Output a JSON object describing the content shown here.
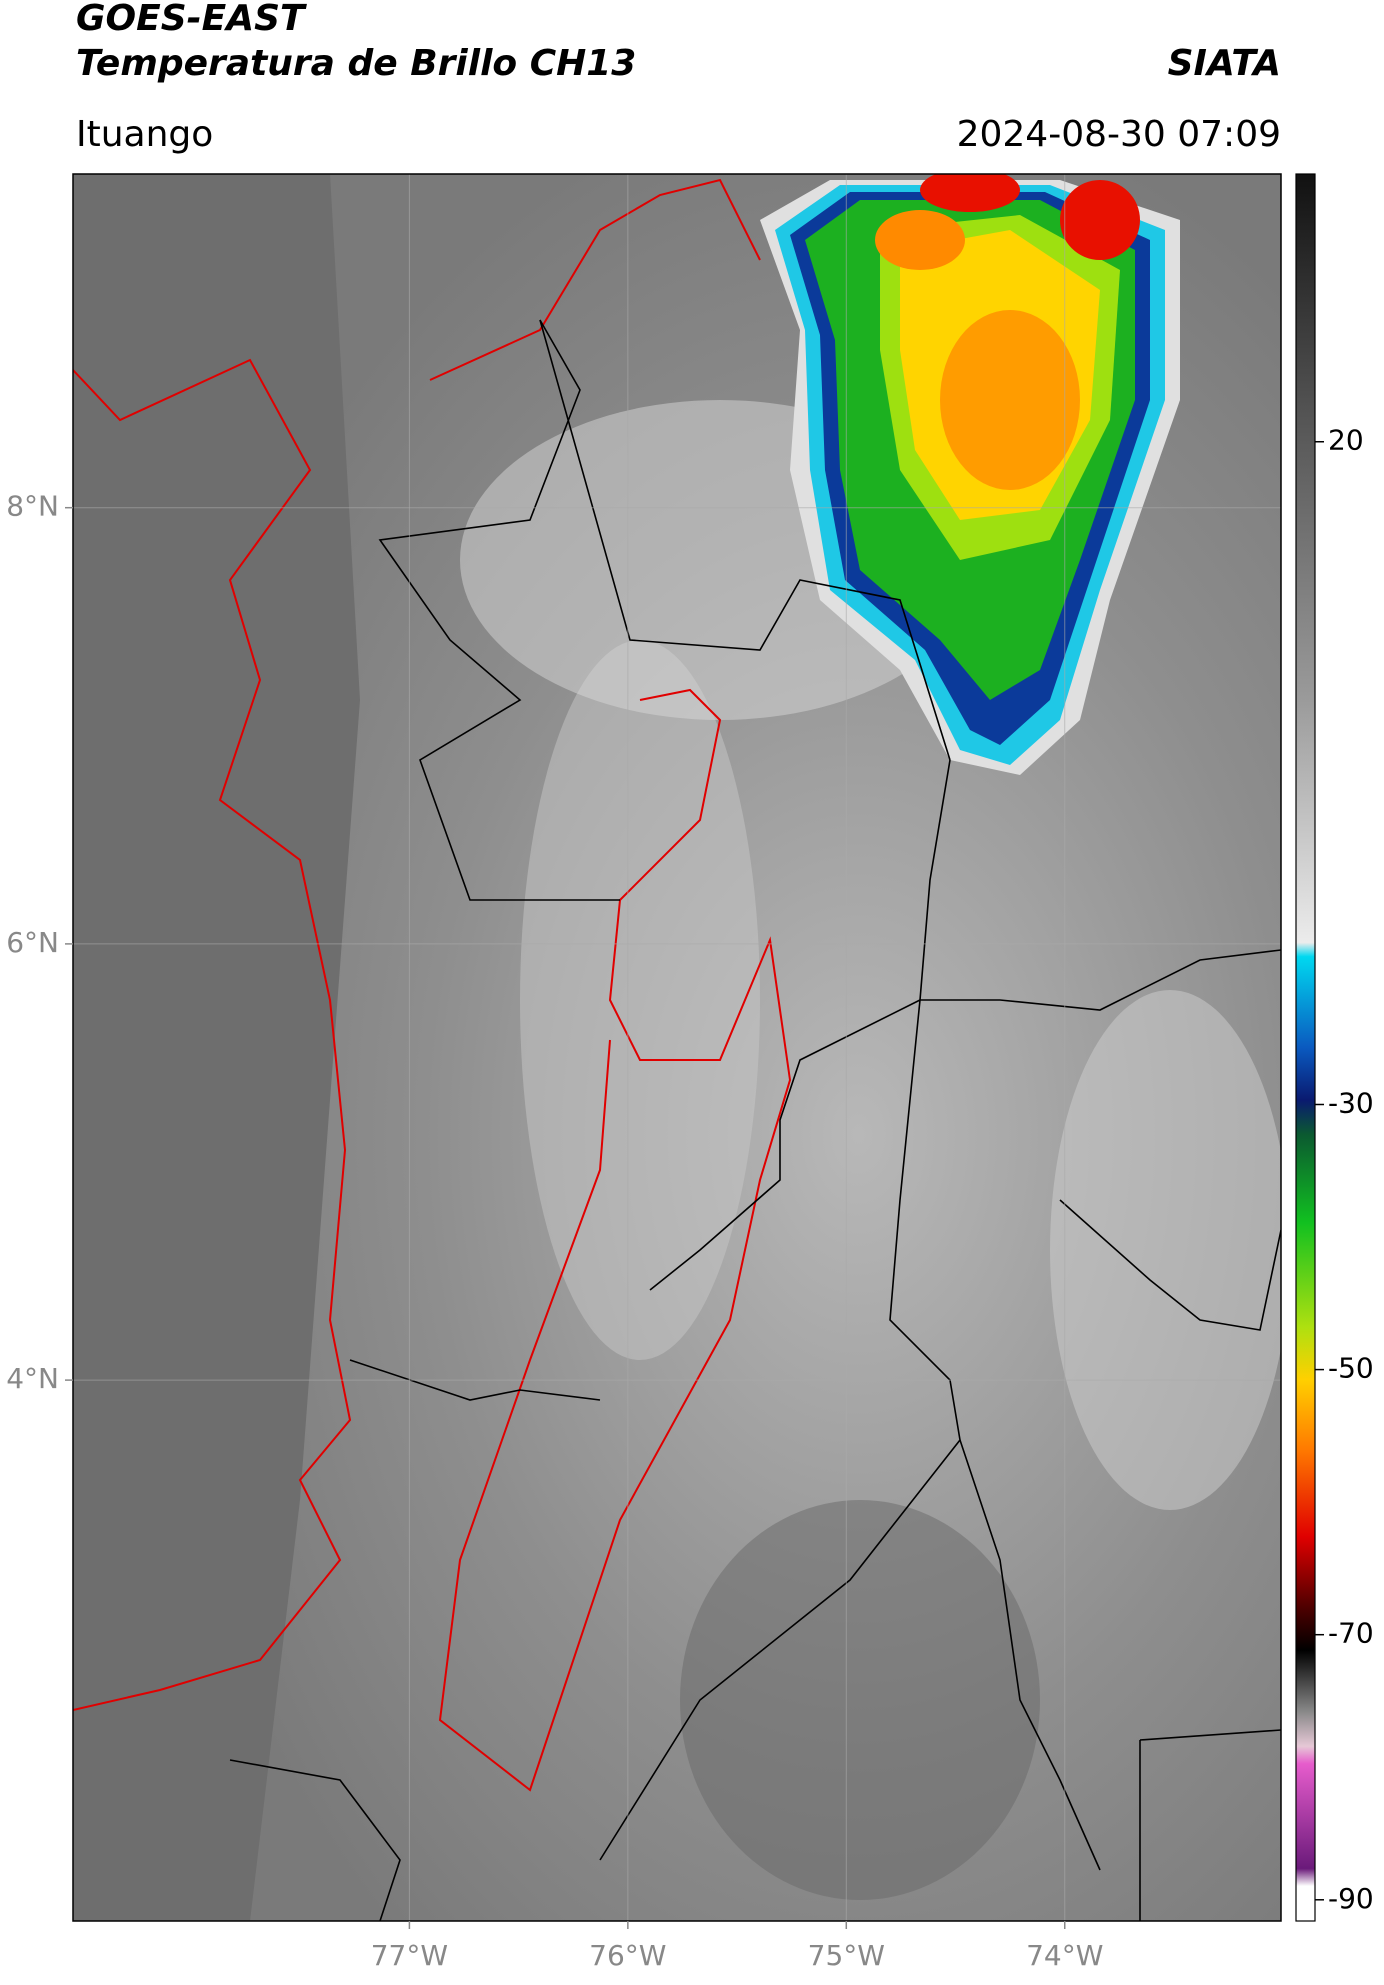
{
  "header": {
    "title": "GOES-EAST",
    "subtitle": "Temperatura de Brillo CH13",
    "source": "SIATA",
    "location": "Ituango",
    "datetime": "2024-08-30 07:09"
  },
  "map": {
    "xlim": [
      -78.54,
      -73.01
    ],
    "ylim": [
      1.52,
      9.53
    ],
    "xticks": [
      {
        "value": -77,
        "label": "77°W"
      },
      {
        "value": -76,
        "label": "76°W"
      },
      {
        "value": -75,
        "label": "75°W"
      },
      {
        "value": -74,
        "label": "74°W"
      }
    ],
    "yticks": [
      {
        "value": 8,
        "label": "8°N"
      },
      {
        "value": 6,
        "label": "6°N"
      },
      {
        "value": 4,
        "label": "4°N"
      }
    ],
    "grid": true
  },
  "colorbar": {
    "lim": [
      -91.6,
      40.2
    ],
    "ticks": [
      20,
      -30,
      -50,
      -70,
      -90
    ]
  }
}
